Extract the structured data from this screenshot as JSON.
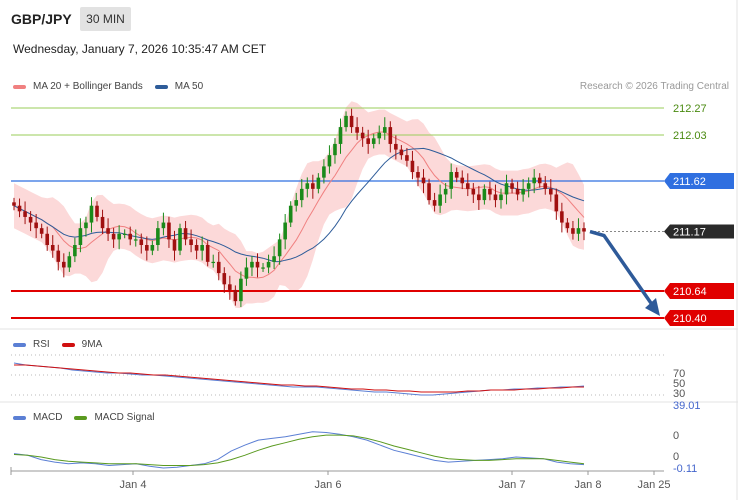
{
  "header": {
    "symbol": "GBP/JPY",
    "timeframe": "30 MIN",
    "datetime": "Wednesday, January 7, 2026 10:35:47 AM CET",
    "credit": "Research © 2026 Trading Central"
  },
  "colors": {
    "ma20": "#f08080",
    "bollinger_fill": "#fcd9d9",
    "ma50": "#2e5c99",
    "bull": "#1a8a1a",
    "bear": "#a01010",
    "resistance_green": "#9acd5a",
    "pivot_blue": "#2f6fe0",
    "support_red": "#e00000",
    "forecast_arrow": "#2e5a99",
    "rsi": "#5b7fd4",
    "rsi_9ma": "#d01010",
    "macd": "#5b7fd4",
    "macd_signal": "#5a9a20"
  },
  "chart_data": [
    {
      "type": "candlestick",
      "panel": "price",
      "legend": [
        {
          "name": "MA 20 + Bollinger Bands",
          "color": "#f08080"
        },
        {
          "name": "MA 50",
          "color": "#2e5c99"
        }
      ],
      "levels": [
        {
          "value": 212.27,
          "label": "212.27",
          "kind": "resistance",
          "color": "#9acd5a"
        },
        {
          "value": 212.03,
          "label": "212.03",
          "kind": "resistance",
          "color": "#9acd5a"
        },
        {
          "value": 211.62,
          "label": "211.62",
          "kind": "pivot",
          "color": "#2f6fe0"
        },
        {
          "value": 211.17,
          "label": "211.17",
          "kind": "last_price",
          "color": "#333333"
        },
        {
          "value": 210.64,
          "label": "210.64",
          "kind": "support",
          "color": "#e00000"
        },
        {
          "value": 210.4,
          "label": "210.40",
          "kind": "support",
          "color": "#e00000"
        }
      ],
      "x_ticks": [
        "Jan 4",
        "Jan 6",
        "Jan 7",
        "Jan 8",
        "Jan 25"
      ],
      "forecast": {
        "from": 211.17,
        "to": 210.4,
        "direction": "down"
      },
      "series": {
        "close": [
          211.4,
          211.35,
          211.3,
          211.25,
          211.2,
          211.15,
          211.05,
          211.0,
          210.9,
          210.85,
          210.95,
          211.05,
          211.2,
          211.25,
          211.4,
          211.3,
          211.2,
          211.15,
          211.1,
          211.15,
          211.15,
          211.1,
          211.1,
          211.05,
          211.0,
          211.05,
          211.2,
          211.25,
          211.1,
          211.0,
          211.2,
          211.1,
          211.05,
          211.0,
          211.05,
          210.9,
          210.9,
          210.8,
          210.7,
          210.65,
          210.55,
          210.75,
          210.85,
          210.9,
          210.85,
          210.85,
          210.9,
          210.95,
          211.1,
          211.25,
          211.4,
          211.45,
          211.55,
          211.6,
          211.55,
          211.65,
          211.75,
          211.85,
          211.95,
          212.1,
          212.2,
          212.1,
          212.05,
          212.0,
          211.95,
          212.0,
          212.05,
          212.1,
          211.95,
          211.9,
          211.85,
          211.8,
          211.7,
          211.65,
          211.6,
          211.45,
          211.4,
          211.5,
          211.55,
          211.7,
          211.65,
          211.6,
          211.55,
          211.5,
          211.45,
          211.55,
          211.5,
          211.45,
          211.5,
          211.6,
          211.55,
          211.5,
          211.55,
          211.6,
          211.65,
          211.6,
          211.55,
          211.5,
          211.35,
          211.25,
          211.2,
          211.15,
          211.2,
          211.17
        ]
      }
    },
    {
      "type": "line",
      "panel": "rsi",
      "legend": [
        {
          "name": "RSI",
          "color": "#5b7fd4"
        },
        {
          "name": "9MA",
          "color": "#d01010"
        }
      ],
      "y_labels": [
        "70",
        "50",
        "30"
      ],
      "last_value": "39.01",
      "series": [
        {
          "name": "RSI",
          "values": [
            62,
            60,
            59,
            58,
            57,
            55,
            54,
            53,
            52,
            52,
            51,
            50,
            50,
            49,
            48,
            47,
            46,
            45,
            44,
            43,
            42,
            41,
            40,
            39,
            38,
            38,
            38,
            37,
            36,
            35,
            34,
            33,
            33,
            32,
            31,
            30,
            30,
            31,
            32,
            33,
            34,
            35,
            35,
            36,
            36,
            37,
            37,
            38,
            38,
            39
          ]
        },
        {
          "name": "9MA",
          "values": [
            60,
            60,
            59,
            58,
            57,
            56,
            55,
            54,
            53,
            52,
            52,
            51,
            50,
            50,
            49,
            48,
            47,
            46,
            45,
            44,
            43,
            42,
            41,
            40,
            40,
            39,
            39,
            38,
            37,
            36,
            36,
            35,
            35,
            34,
            34,
            33,
            33,
            33,
            33,
            34,
            34,
            35,
            35,
            35,
            36,
            36,
            37,
            37,
            38,
            38
          ]
        }
      ]
    },
    {
      "type": "line",
      "panel": "macd",
      "legend": [
        {
          "name": "MACD",
          "color": "#5b7fd4"
        },
        {
          "name": "MACD Signal",
          "color": "#5a9a20"
        }
      ],
      "y_labels": [
        "0",
        "0"
      ],
      "last_value": "-0.11",
      "series": [
        {
          "name": "MACD",
          "values": [
            0.02,
            0.0,
            -0.05,
            -0.08,
            -0.1,
            -0.09,
            -0.1,
            -0.12,
            -0.11,
            -0.1,
            -0.13,
            -0.15,
            -0.14,
            -0.12,
            -0.1,
            -0.05,
            0.05,
            0.12,
            0.18,
            0.2,
            0.22,
            0.25,
            0.28,
            0.27,
            0.25,
            0.22,
            0.18,
            0.12,
            0.06,
            0.02,
            -0.02,
            -0.06,
            -0.08,
            -0.07,
            -0.06,
            -0.05,
            -0.04,
            -0.02,
            -0.03,
            -0.04,
            -0.08,
            -0.1,
            -0.11
          ]
        },
        {
          "name": "MACD Signal",
          "values": [
            0.01,
            0.0,
            -0.02,
            -0.05,
            -0.07,
            -0.08,
            -0.09,
            -0.1,
            -0.1,
            -0.1,
            -0.11,
            -0.12,
            -0.12,
            -0.12,
            -0.11,
            -0.09,
            -0.05,
            0.0,
            0.06,
            0.11,
            0.15,
            0.19,
            0.22,
            0.24,
            0.24,
            0.23,
            0.2,
            0.16,
            0.11,
            0.07,
            0.03,
            -0.01,
            -0.04,
            -0.05,
            -0.06,
            -0.06,
            -0.05,
            -0.04,
            -0.04,
            -0.04,
            -0.06,
            -0.08,
            -0.1
          ]
        }
      ]
    }
  ]
}
